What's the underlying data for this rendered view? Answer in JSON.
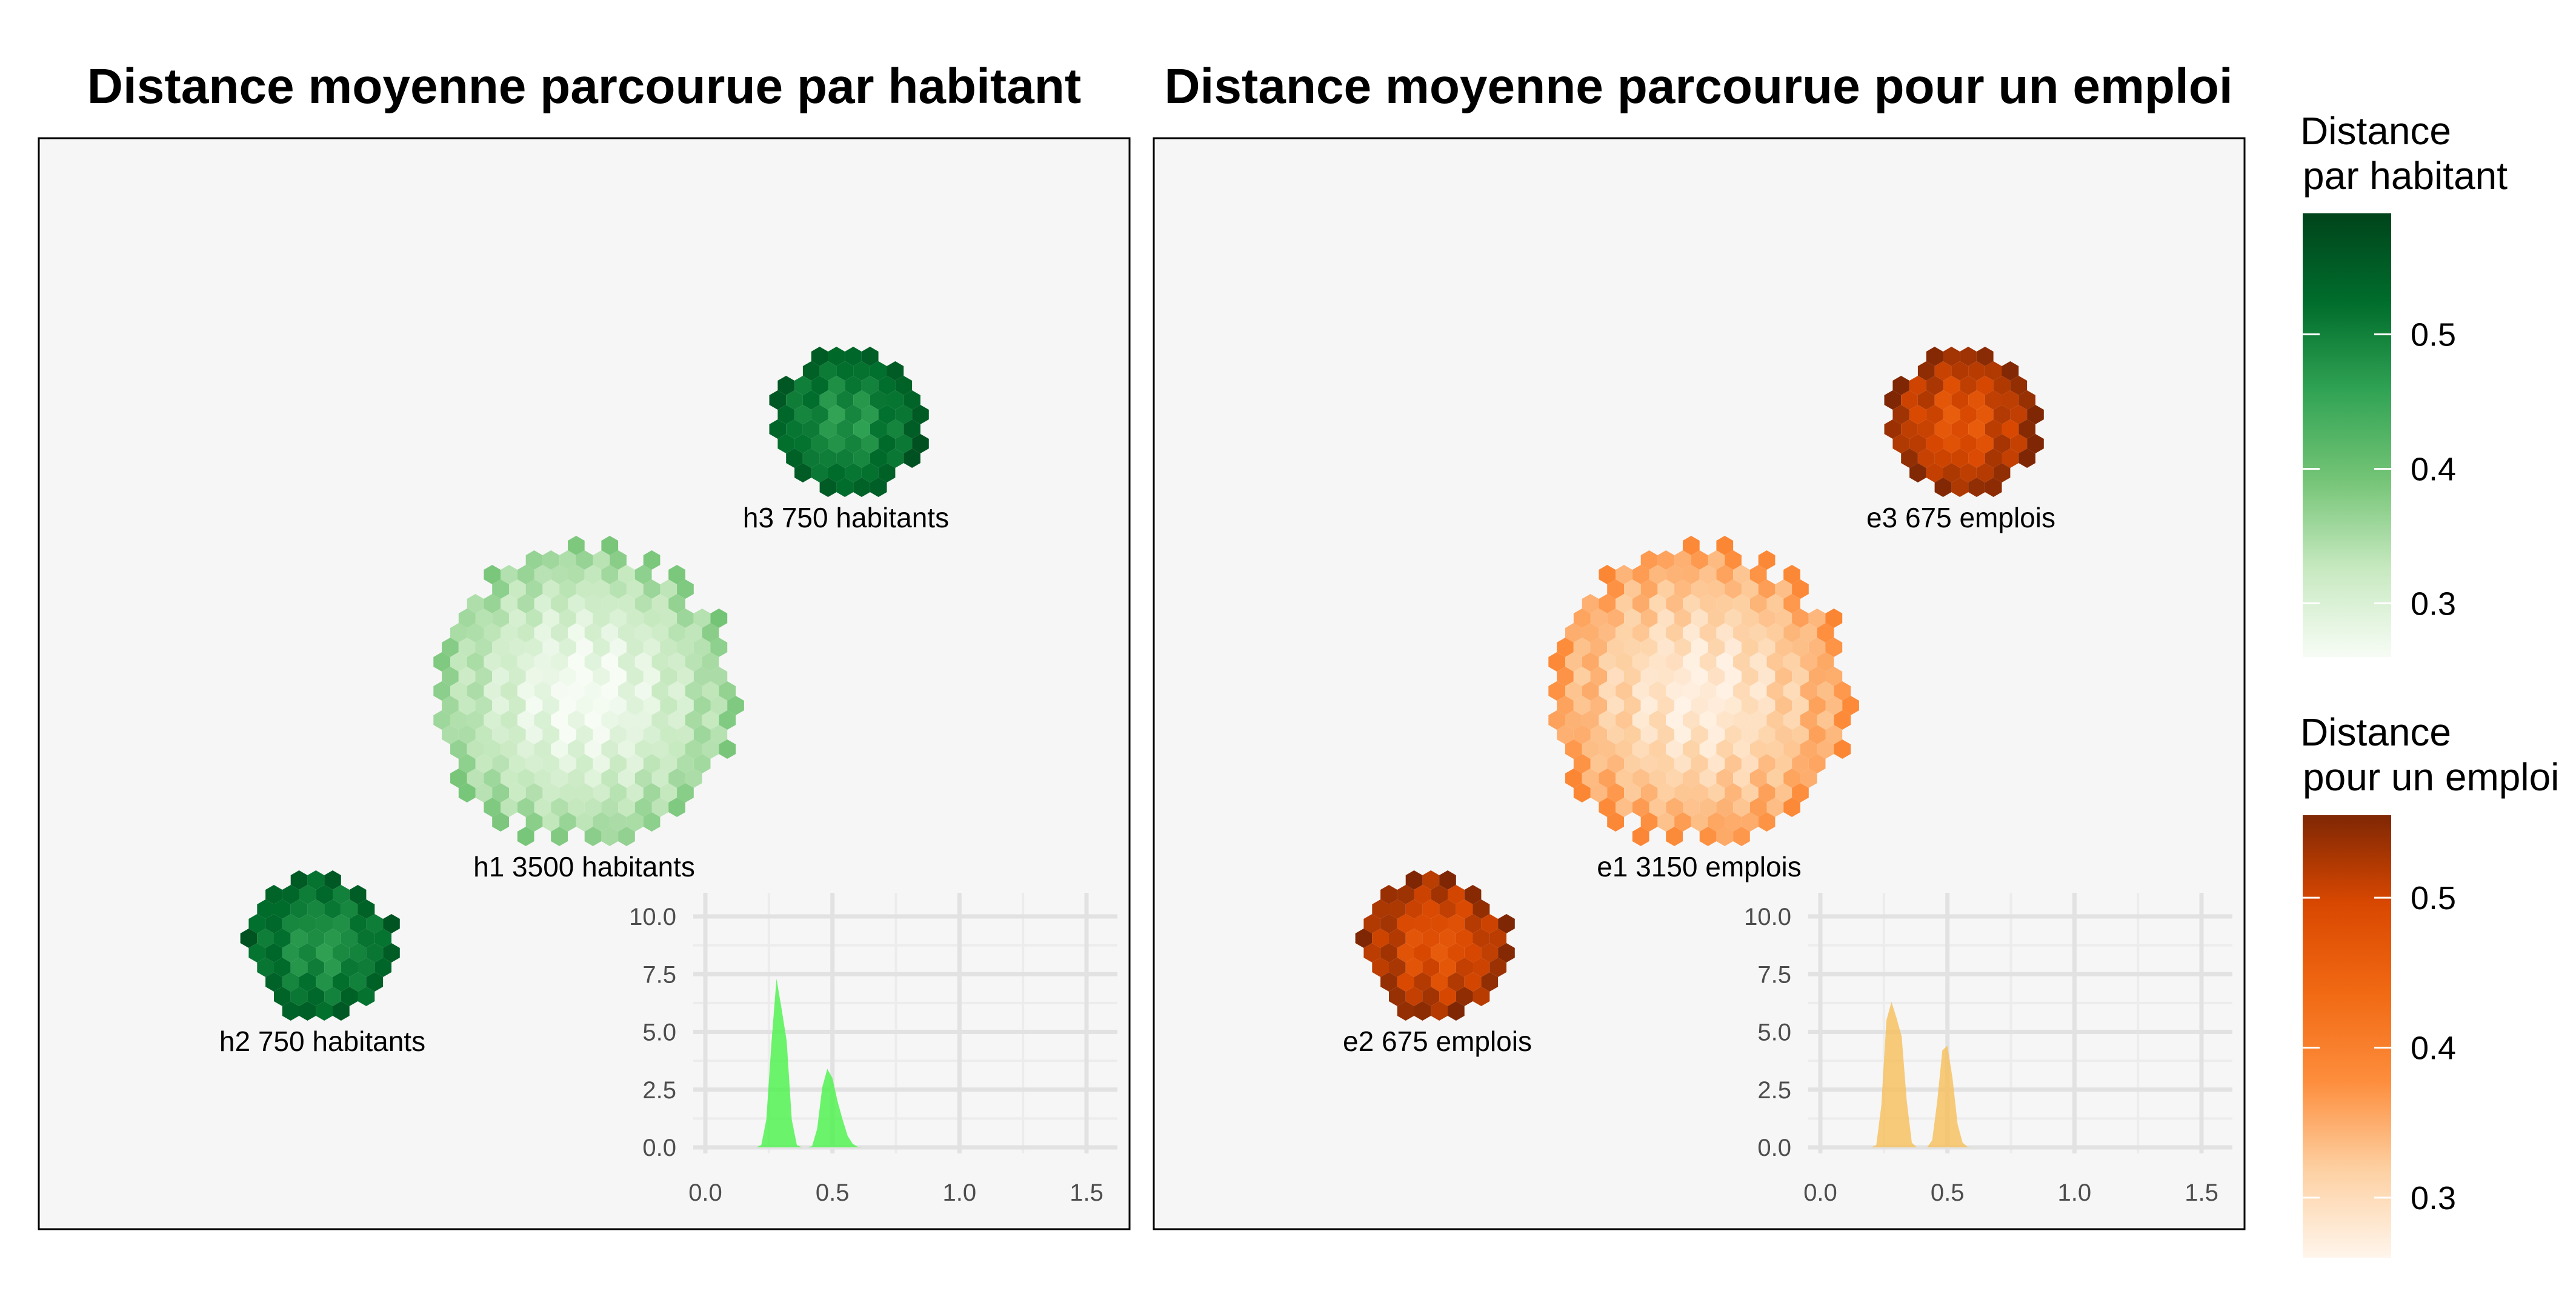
{
  "chart_data": [
    {
      "type": "heatmap",
      "title": "Distance moyenne parcourue par habitant",
      "palette": "green",
      "clusters": [
        {
          "label": "h1 3500 habitants",
          "x": 0.5,
          "y": 0.49,
          "radius": 0.14,
          "distance_center": 0.26,
          "distance_edge": 0.37
        },
        {
          "label": "h2 750 habitants",
          "x": 0.26,
          "y": 0.26,
          "radius": 0.07,
          "distance_center": 0.47,
          "distance_edge": 0.55
        },
        {
          "label": "h3 750 habitants",
          "x": 0.74,
          "y": 0.74,
          "radius": 0.07,
          "distance_center": 0.47,
          "distance_edge": 0.55
        }
      ],
      "inset": {
        "type": "area",
        "x": [
          0.2,
          0.22,
          0.24,
          0.26,
          0.28,
          0.3,
          0.32,
          0.34,
          0.36,
          0.38,
          0.4,
          0.42,
          0.44,
          0.46,
          0.48,
          0.5,
          0.52,
          0.54,
          0.56,
          0.58,
          0.6,
          0.62
        ],
        "y": [
          0,
          0.1,
          1.2,
          4.5,
          7.3,
          6.0,
          4.6,
          1.2,
          0.1,
          0,
          0,
          0.05,
          0.8,
          2.6,
          3.4,
          3.0,
          2.0,
          1.2,
          0.5,
          0.15,
          0.02,
          0
        ],
        "xlim": [
          0,
          1.55
        ],
        "ylim": [
          0,
          10.5
        ],
        "xticks": [
          "0.0",
          "0.5",
          "1.0",
          "1.5"
        ],
        "yticks": [
          "0.0",
          "2.5",
          "5.0",
          "7.5",
          "10.0"
        ],
        "fill": "#4cf24c"
      }
    },
    {
      "type": "heatmap",
      "title": "Distance moyenne parcourue pour un emploi",
      "palette": "orange",
      "clusters": [
        {
          "label": "e1 3150 emplois",
          "x": 0.5,
          "y": 0.49,
          "radius": 0.14,
          "distance_center": 0.27,
          "distance_edge": 0.37
        },
        {
          "label": "e2 675 emplois",
          "x": 0.26,
          "y": 0.26,
          "radius": 0.07,
          "distance_center": 0.47,
          "distance_edge": 0.55
        },
        {
          "label": "e3 675 emplois",
          "x": 0.74,
          "y": 0.74,
          "radius": 0.07,
          "distance_center": 0.47,
          "distance_edge": 0.55
        }
      ],
      "inset": {
        "type": "area",
        "x": [
          0.2,
          0.22,
          0.24,
          0.26,
          0.28,
          0.3,
          0.32,
          0.34,
          0.36,
          0.38,
          0.4,
          0.42,
          0.44,
          0.46,
          0.48,
          0.5,
          0.52,
          0.54,
          0.56,
          0.58,
          0.6,
          0.62
        ],
        "y": [
          0,
          0.1,
          1.8,
          5.5,
          6.3,
          5.6,
          4.8,
          2.0,
          0.2,
          0,
          0,
          0,
          0.3,
          2.0,
          4.2,
          4.4,
          3.0,
          1.0,
          0.2,
          0.02,
          0,
          0
        ],
        "xlim": [
          0,
          1.55
        ],
        "ylim": [
          0,
          10.5
        ],
        "xticks": [
          "0.0",
          "0.5",
          "1.0",
          "1.5"
        ],
        "yticks": [
          "0.0",
          "2.5",
          "5.0",
          "7.5",
          "10.0"
        ],
        "fill": "#f5bf5c"
      }
    }
  ],
  "legends": [
    {
      "title_line1": "Distance",
      "title_line2": "par habitant",
      "ticks": [
        "0.5",
        "0.4",
        "0.3"
      ],
      "tick_values": [
        0.5,
        0.4,
        0.3
      ],
      "range": [
        0.26,
        0.59
      ],
      "colors": [
        "#f7fcf5",
        "#c7e9c0",
        "#74c476",
        "#31a354",
        "#006d2c",
        "#00441b"
      ]
    },
    {
      "title_line1": "Distance",
      "title_line2": "pour un emploi",
      "ticks": [
        "0.5",
        "0.4",
        "0.3"
      ],
      "tick_values": [
        0.5,
        0.4,
        0.3
      ],
      "range": [
        0.26,
        0.555
      ],
      "colors": [
        "#fff5eb",
        "#fdd0a2",
        "#fd8d3c",
        "#f16913",
        "#d94801",
        "#7f2704"
      ]
    }
  ]
}
